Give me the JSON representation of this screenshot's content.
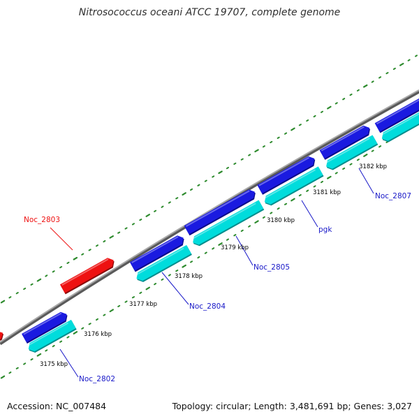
{
  "title": "Nitrosococcus oceani ATCC 19707, complete genome",
  "footer": {
    "accession": "Accession: NC_007484",
    "summary": "Topology: circular; Length: 3,481,691 bp; Genes: 3,027"
  },
  "colors": {
    "backbone": "#808080",
    "gc_dots": "#2e8b2e",
    "forward_cds": "#1a1ae0",
    "reverse_cds": "#00dcdc",
    "highlight_gene": "#ee1111",
    "highlight_label": "#ee1111",
    "gene_label": "#1818c8",
    "leader_line": "#1818c8"
  },
  "scale_labels": [
    "3175 kbp",
    "3176 kbp",
    "3177 kbp",
    "3178 kbp",
    "3179 kbp",
    "3180 kbp",
    "3181 kbp",
    "3182 kbp"
  ],
  "genes": [
    {
      "name": "Noc_2802",
      "highlight": false
    },
    {
      "name": "Noc_2803",
      "highlight": true
    },
    {
      "name": "Noc_2804",
      "highlight": false
    },
    {
      "name": "Noc_2805",
      "highlight": false
    },
    {
      "name": "pgk",
      "highlight": false
    },
    {
      "name": "Noc_2807",
      "highlight": false
    }
  ]
}
